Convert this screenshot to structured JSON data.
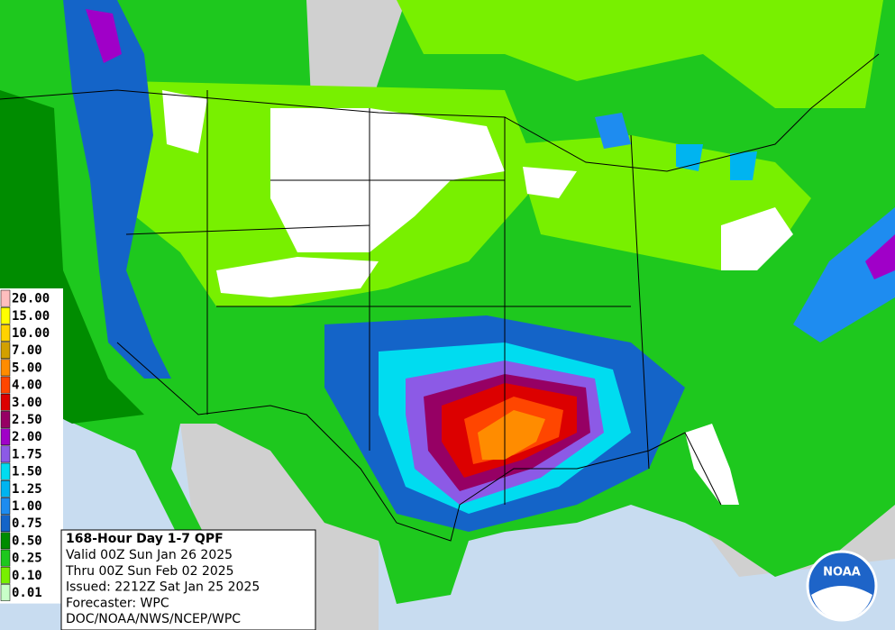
{
  "legend": {
    "items": [
      {
        "label": "20.00",
        "color": "#ffbebe"
      },
      {
        "label": "15.00",
        "color": "#ffff00"
      },
      {
        "label": "10.00",
        "color": "#ffd200"
      },
      {
        "label": "7.00",
        "color": "#d2a000"
      },
      {
        "label": "5.00",
        "color": "#ff8c00"
      },
      {
        "label": "4.00",
        "color": "#ff4600"
      },
      {
        "label": "3.00",
        "color": "#dc0000"
      },
      {
        "label": "2.50",
        "color": "#960064"
      },
      {
        "label": "2.00",
        "color": "#a000c8"
      },
      {
        "label": "1.75",
        "color": "#8c5ae6"
      },
      {
        "label": "1.50",
        "color": "#00dcf0"
      },
      {
        "label": "1.25",
        "color": "#00b4f0"
      },
      {
        "label": "1.00",
        "color": "#1e8cf0"
      },
      {
        "label": "0.75",
        "color": "#1464c8"
      },
      {
        "label": "0.50",
        "color": "#008c00"
      },
      {
        "label": "0.25",
        "color": "#1ec81e"
      },
      {
        "label": "0.10",
        "color": "#78f000"
      },
      {
        "label": "0.01",
        "color": "#c8ffc8"
      }
    ]
  },
  "info": {
    "title": "168-Hour Day 1-7 QPF",
    "lines": [
      "Valid 00Z Sun Jan 26 2025",
      "Thru 00Z Sun Feb 02 2025",
      "Issued: 2212Z Sat Jan 25 2025",
      "Forecaster: WPC",
      "DOC/NOAA/NWS/NCEP/WPC"
    ]
  },
  "logo": {
    "text": "NOAA"
  }
}
